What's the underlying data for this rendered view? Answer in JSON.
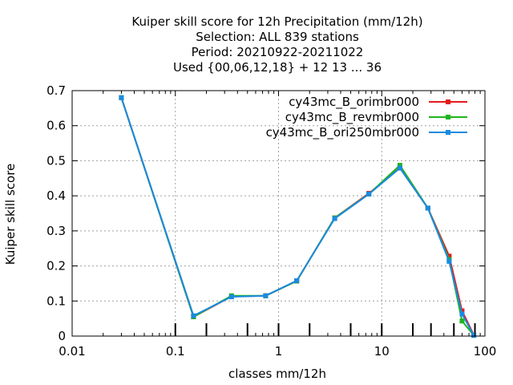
{
  "chart_data": {
    "type": "line",
    "title_lines": [
      "Kuiper skill score  for 12h Precipitation (mm/12h)",
      "Selection: ALL    839 stations",
      "Period: 20210922-20211022",
      "Used {00,06,12,18} + 12 13 ... 36"
    ],
    "xlabel": "classes mm/12h",
    "ylabel": "Kuiper skill score",
    "xscale": "log",
    "xlim": [
      0.01,
      100
    ],
    "ylim": [
      0,
      0.7
    ],
    "xticks": [
      0.01,
      0.1,
      1,
      10,
      100
    ],
    "xtick_labels": [
      "0.01",
      "0.1",
      "1",
      "10",
      "100"
    ],
    "yticks": [
      0,
      0.1,
      0.2,
      0.3,
      0.4,
      0.5,
      0.6,
      0.7
    ],
    "ytick_labels": [
      "0",
      "0.1",
      "0.2",
      "0.3",
      "0.4",
      "0.5",
      "0.6",
      "0.7"
    ],
    "grid": true,
    "legend_position": "top-right",
    "class_marks": [
      0.1,
      0.2,
      0.5,
      1,
      2,
      5,
      10,
      20,
      30,
      50,
      80
    ],
    "series": [
      {
        "name": "cy43mc_B_orimbr000",
        "color": "#e41a1c",
        "x": [
          0.03,
          0.15,
          0.35,
          0.75,
          1.5,
          3.5,
          7.5,
          15,
          28,
          45,
          60,
          78
        ],
        "y": [
          0.68,
          0.055,
          0.113,
          0.115,
          0.157,
          0.337,
          0.407,
          0.48,
          0.365,
          0.228,
          0.072,
          0.003
        ]
      },
      {
        "name": "cy43mc_B_revmbr000",
        "color": "#1eb41e",
        "x": [
          0.03,
          0.15,
          0.35,
          0.75,
          1.5,
          3.5,
          7.5,
          15,
          28,
          45,
          60,
          78
        ],
        "y": [
          0.68,
          0.055,
          0.115,
          0.115,
          0.157,
          0.337,
          0.405,
          0.487,
          0.365,
          0.218,
          0.043,
          0.002
        ]
      },
      {
        "name": "cy43mc_B_ori250mbr000",
        "color": "#1a8ae0",
        "x": [
          0.03,
          0.15,
          0.35,
          0.75,
          1.5,
          3.5,
          7.5,
          15,
          28,
          45,
          60,
          78
        ],
        "y": [
          0.68,
          0.058,
          0.112,
          0.115,
          0.158,
          0.335,
          0.405,
          0.479,
          0.365,
          0.213,
          0.063,
          0.002
        ]
      }
    ]
  }
}
